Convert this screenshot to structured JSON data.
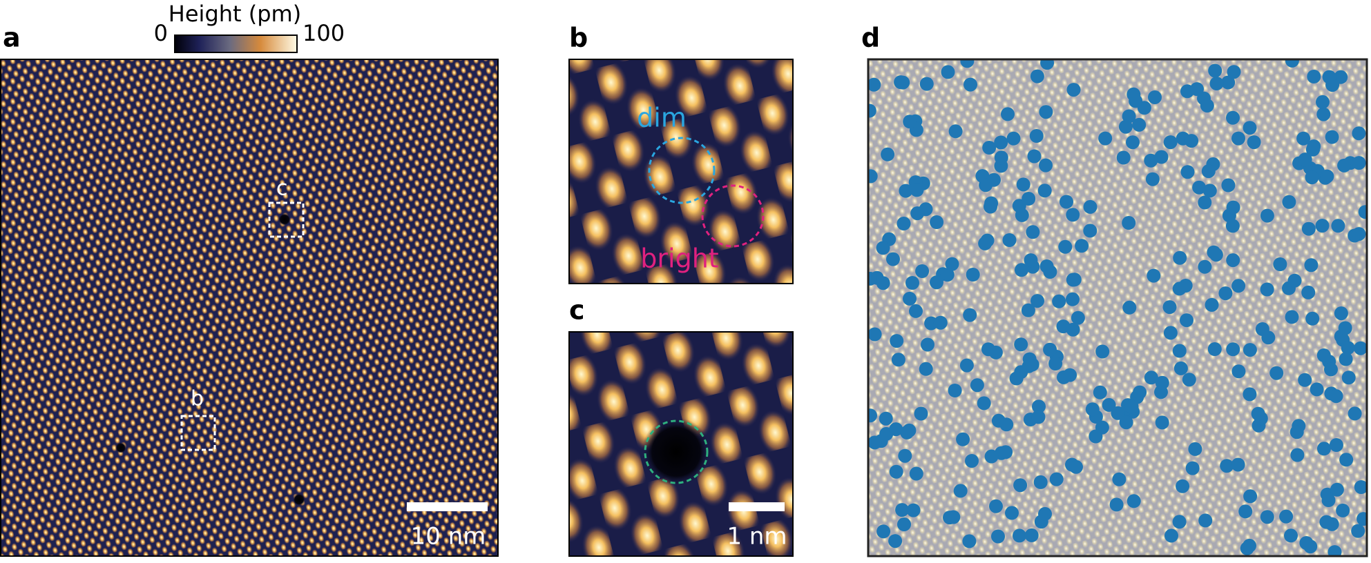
{
  "panels": {
    "a": {
      "label": "a",
      "colorbar": {
        "title": "Height (pm)",
        "lim": [
          0,
          100
        ],
        "ticks": [
          0,
          100
        ]
      },
      "box_labels": [
        "c",
        "b"
      ],
      "scale_bar": "10 nm"
    },
    "b": {
      "label": "b",
      "dim": "dim",
      "bright": "bright"
    },
    "c": {
      "label": "c",
      "scale_bar": "1 nm"
    },
    "d": {
      "label": "d"
    }
  }
}
